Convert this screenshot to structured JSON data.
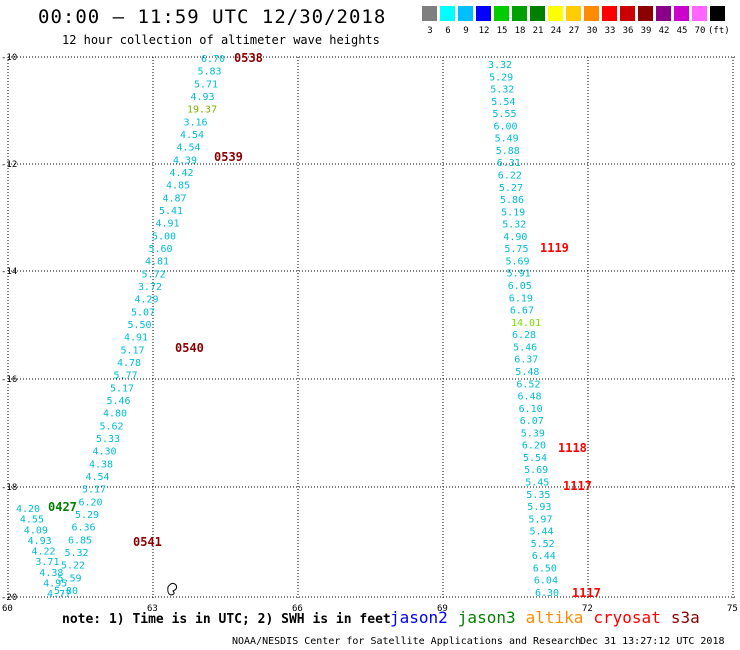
{
  "header": {
    "title": "00:00 — 11:59 UTC 12/30/2018",
    "subtitle": "12 hour collection of altimeter wave heights"
  },
  "color_scale": {
    "colors": [
      "#7f7f7f",
      "#00ffff",
      "#00bfff",
      "#0000ff",
      "#00cc00",
      "#00a000",
      "#008000",
      "#ffff00",
      "#ffcc00",
      "#ff8c00",
      "#ff0000",
      "#cc0000",
      "#8b0000",
      "#8b008b",
      "#cc00cc",
      "#ff66ff",
      "#000000"
    ],
    "labels": [
      "3",
      "6",
      "9",
      "12",
      "15",
      "18",
      "21",
      "24",
      "27",
      "30",
      "33",
      "36",
      "39",
      "42",
      "45",
      "70",
      "(ft)"
    ]
  },
  "axes": {
    "lat_labels": [
      "-10",
      "-12",
      "-14",
      "-16",
      "-18",
      "-20"
    ],
    "lon_labels": [
      "60",
      "63",
      "66",
      "69",
      "72",
      "75"
    ]
  },
  "tracks": [
    {
      "name": "track-a",
      "color": "#00bcd4",
      "values": [
        "6.70",
        "5.83",
        "5.71",
        "4.93",
        "19.37",
        "3.16",
        "4.54",
        "4.54",
        "4.39",
        "4.42",
        "4.85",
        "4.87",
        "5.41",
        "4.91",
        "5.00",
        "5.60",
        "4.81",
        "5.72",
        "3.72",
        "4.29",
        "5.07",
        "5.50",
        "4.91",
        "5.17",
        "4.78",
        "5.77",
        "5.17",
        "5.46",
        "4.80",
        "5.62",
        "5.33",
        "4.30",
        "4.38",
        "4.54",
        "5.17",
        "6.20",
        "5.29",
        "6.36",
        "6.85",
        "5.32",
        "5.22",
        "5.59",
        "5.80"
      ],
      "highlight_colors": {
        "4": "#7cb300"
      }
    },
    {
      "name": "track-b",
      "color": "#00bcd4",
      "values": [
        "3.32",
        "5.29",
        "5.32",
        "5.54",
        "5.55",
        "6.00",
        "5.49",
        "5.88",
        "6.31",
        "6.22",
        "5.27",
        "5.86",
        "5.19",
        "5.32",
        "4.90",
        "5.75",
        "5.69",
        "5.91",
        "6.05",
        "6.19",
        "6.67",
        "14.01",
        "6.28",
        "5.46",
        "6.37",
        "5.48",
        "6.52",
        "6.48",
        "6.10",
        "6.07",
        "5.39",
        "6.20",
        "5.54",
        "5.69",
        "5.45",
        "5.35",
        "5.93",
        "5.97",
        "5.44",
        "5.52",
        "6.44",
        "6.50",
        "6.04",
        "6.30"
      ],
      "highlight_colors": {
        "21": "#7cdc00"
      }
    },
    {
      "name": "track-c",
      "color": "#00bcd4",
      "values": [
        "4.20",
        "4.55",
        "4.09",
        "4.93",
        "4.22",
        "3.71",
        "4.38",
        "4.95",
        "4.77"
      ],
      "highlight_colors": {}
    }
  ],
  "time_labels": [
    {
      "text": "0538",
      "color": "#8b0000"
    },
    {
      "text": "0539",
      "color": "#8b0000"
    },
    {
      "text": "0540",
      "color": "#8b0000"
    },
    {
      "text": "0541",
      "color": "#8b0000"
    },
    {
      "text": "1119",
      "color": "#ff0000"
    },
    {
      "text": "1118",
      "color": "#ff0000"
    },
    {
      "text": "1117",
      "color": "#ff0000"
    },
    {
      "text": "1117",
      "color": "#ff0000"
    },
    {
      "text": "0427",
      "color": "#008000"
    }
  ],
  "footer": {
    "note": "note: 1) Time is in UTC; 2) SWH is in feet",
    "legend": [
      {
        "label": "jason2",
        "color": "#0000ff"
      },
      {
        "label": "jason3",
        "color": "#008000"
      },
      {
        "label": "altika",
        "color": "#ff8c00"
      },
      {
        "label": "cryosat",
        "color": "#ff0000"
      },
      {
        "label": "s3a",
        "color": "#8b0000"
      }
    ],
    "credit": "NOAA/NESDIS Center for Satellite Applications and Research",
    "timestamp": "Dec 31 13:27:12 UTC 2018"
  }
}
